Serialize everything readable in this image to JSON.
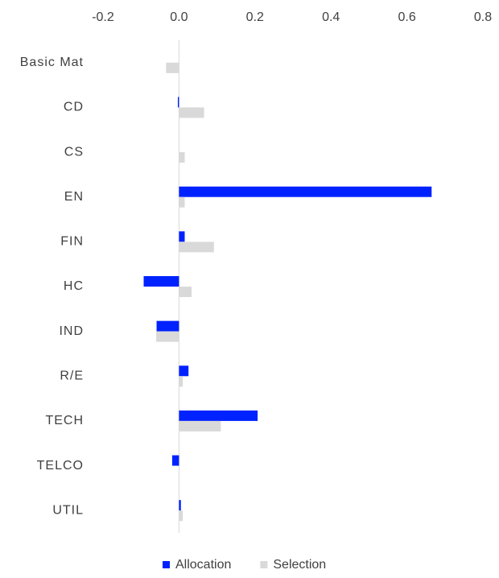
{
  "chart_data": {
    "type": "hbar",
    "categories": [
      "Basic Mat",
      "CD",
      "CS",
      "EN",
      "FIN",
      "HC",
      "IND",
      "R/E",
      "TECH",
      "TELCO",
      "UTIL"
    ],
    "series": [
      {
        "name": "Allocation",
        "color": "#0022ff",
        "values": [
          0,
          -0.003,
          0,
          0.665,
          0.015,
          -0.093,
          -0.059,
          0.025,
          0.207,
          -0.018,
          0.005
        ]
      },
      {
        "name": "Selection",
        "color": "#d9d9d9",
        "values": [
          -0.034,
          0.066,
          0.015,
          0.015,
          0.092,
          0.033,
          -0.06,
          0.01,
          0.11,
          0,
          0.01
        ]
      }
    ],
    "xlim": [
      -0.2,
      0.8
    ],
    "xticks": [
      -0.2,
      {
        "value": 0,
        "label": "0.0"
      },
      0.2,
      0.4,
      0.6,
      0.8
    ],
    "grid": false,
    "legend": "bottom"
  }
}
